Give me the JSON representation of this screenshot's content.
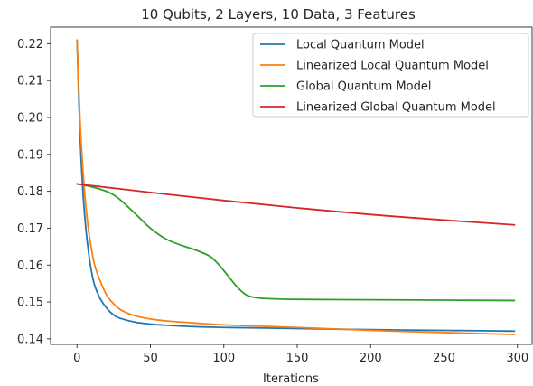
{
  "chart_data": {
    "type": "line",
    "title": "10 Qubits, 2 Layers, 10 Data, 3 Features",
    "xlabel": "Iterations",
    "ylabel": "",
    "xlim": [
      -18,
      310
    ],
    "ylim": [
      0.1385,
      0.2245
    ],
    "xticks": [
      0,
      50,
      100,
      150,
      200,
      250,
      300
    ],
    "yticks": [
      0.14,
      0.15,
      0.16,
      0.17,
      0.18,
      0.19,
      0.2,
      0.21,
      0.22
    ],
    "ytick_labels": [
      "0.14",
      "0.15",
      "0.16",
      "0.17",
      "0.18",
      "0.19",
      "0.20",
      "0.21",
      "0.22"
    ],
    "grid": false,
    "legend_position": "top-right",
    "series": [
      {
        "name": "Local Quantum Model",
        "color": "#1f77b4",
        "x": [
          0,
          2,
          4,
          6,
          8,
          10,
          12,
          15,
          18,
          22,
          26,
          30,
          40,
          50,
          60,
          80,
          100,
          150,
          200,
          250,
          298
        ],
        "y": [
          0.221,
          0.196,
          0.18,
          0.17,
          0.163,
          0.158,
          0.1545,
          0.1515,
          0.1495,
          0.1475,
          0.1462,
          0.1455,
          0.1445,
          0.144,
          0.1437,
          0.1433,
          0.1431,
          0.1428,
          0.1425,
          0.1423,
          0.1421
        ]
      },
      {
        "name": "Linearized Local Quantum Model",
        "color": "#ff7f0e",
        "x": [
          0,
          2,
          4,
          6,
          8,
          10,
          12,
          15,
          20,
          25,
          30,
          40,
          50,
          60,
          80,
          100,
          150,
          200,
          250,
          298
        ],
        "y": [
          0.221,
          0.2,
          0.186,
          0.176,
          0.169,
          0.164,
          0.16,
          0.1565,
          0.152,
          0.1495,
          0.1478,
          0.1462,
          0.1454,
          0.1449,
          0.1443,
          0.1438,
          0.1431,
          0.1423,
          0.1417,
          0.1412
        ]
      },
      {
        "name": "Global Quantum Model",
        "color": "#2ca02c",
        "x": [
          0,
          10,
          20,
          25,
          30,
          40,
          50,
          60,
          70,
          80,
          90,
          95,
          100,
          105,
          110,
          115,
          120,
          130,
          150,
          200,
          250,
          298
        ],
        "y": [
          0.182,
          0.1812,
          0.18,
          0.179,
          0.1775,
          0.1738,
          0.17,
          0.1672,
          0.1655,
          0.1642,
          0.1625,
          0.1608,
          0.1585,
          0.156,
          0.1537,
          0.152,
          0.1513,
          0.1509,
          0.1507,
          0.1506,
          0.1505,
          0.1504
        ]
      },
      {
        "name": "Linearized Global Quantum Model",
        "color": "#d62728",
        "x": [
          0,
          50,
          100,
          150,
          200,
          250,
          298
        ],
        "y": [
          0.182,
          0.1797,
          0.1775,
          0.1755,
          0.1737,
          0.1722,
          0.1709
        ]
      }
    ]
  }
}
